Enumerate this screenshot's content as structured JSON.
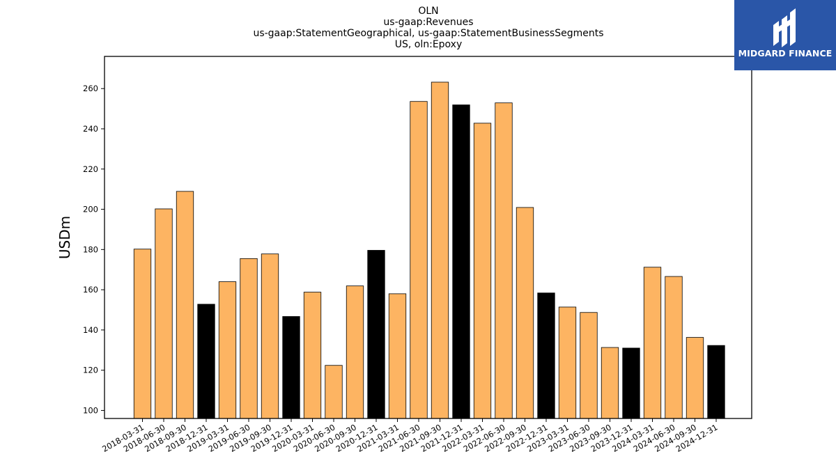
{
  "chart_data": {
    "type": "bar",
    "title_lines": [
      "OLN",
      "us-gaap:Revenues",
      "us-gaap:StatementGeographical, us-gaap:StatementBusinessSegments",
      "US, oln:Epoxy"
    ],
    "xlabel": "",
    "ylabel": "USDm",
    "ylim": [
      96,
      276
    ],
    "yticks": [
      100,
      120,
      140,
      160,
      180,
      200,
      220,
      240,
      260
    ],
    "grid": false,
    "categories": [
      "2018-03-31",
      "2018-06-30",
      "2018-09-30",
      "2018-12-31",
      "2019-03-31",
      "2019-06-30",
      "2019-09-30",
      "2019-12-31",
      "2020-03-31",
      "2020-06-30",
      "2020-09-30",
      "2020-12-31",
      "2021-03-31",
      "2021-06-30",
      "2021-09-30",
      "2021-12-31",
      "2022-03-31",
      "2022-06-30",
      "2022-09-30",
      "2022-12-31",
      "2023-03-31",
      "2023-06-30",
      "2023-09-30",
      "2023-12-31",
      "2024-03-31",
      "2024-06-30",
      "2024-09-30",
      "2024-12-31"
    ],
    "values": [
      180.2,
      200.2,
      208.9,
      152.8,
      164.0,
      175.5,
      177.8,
      146.7,
      158.8,
      122.4,
      161.9,
      179.6,
      158.0,
      253.6,
      263.2,
      251.9,
      242.8,
      252.9,
      200.9,
      158.4,
      151.4,
      148.7,
      131.3,
      131.0,
      171.2,
      166.6,
      136.3,
      132.3
    ],
    "colors": {
      "quarter": "#fdb462",
      "year_end": "#000000",
      "edge": "#000000"
    }
  },
  "logo": {
    "text": "MIDGARD FINANCE",
    "background": "#2a56a8"
  }
}
